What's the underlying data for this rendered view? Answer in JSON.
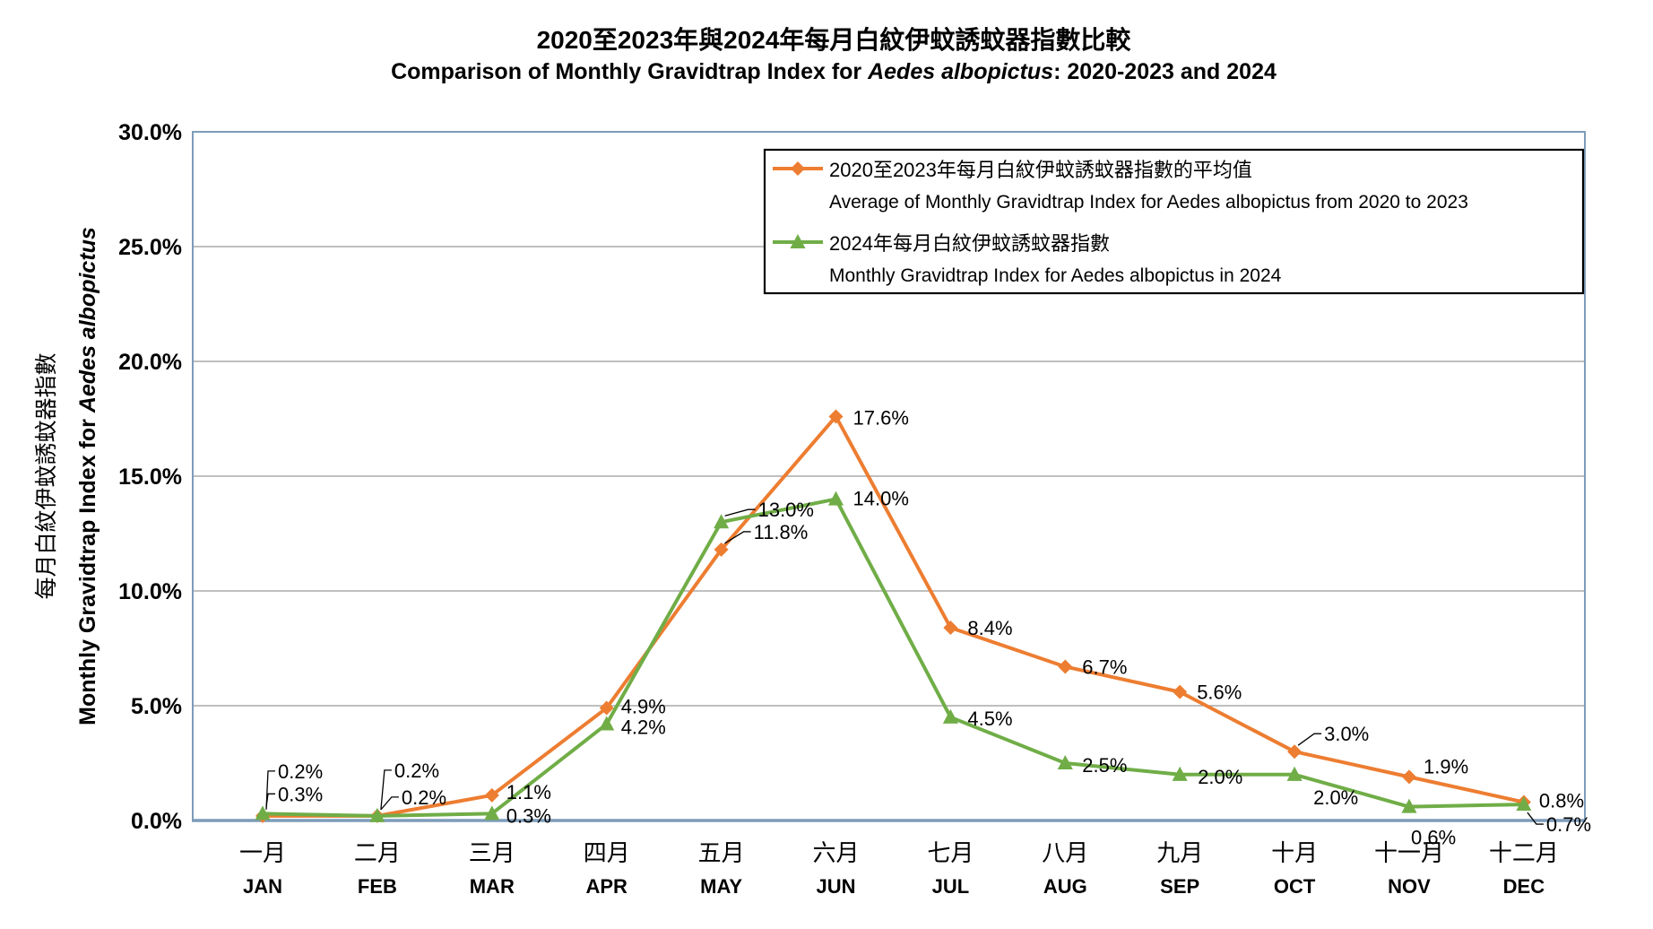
{
  "title": {
    "zh": "2020至2023年與2024年每月白紋伊蚊誘蚊器指數比較",
    "en_prefix": "Comparison of Monthly Gravidtrap Index for ",
    "en_italic": "Aedes albopictus",
    "en_suffix": ":  2020-2023 and 2024"
  },
  "axes": {
    "y_title_zh": "每月白紋伊蚊誘蚊器指數",
    "y_title_en_prefix": "Monthly Gravidtrap Index for ",
    "y_title_en_italic": "Aedes albopictus"
  },
  "chart_data": {
    "type": "line",
    "categories_zh": [
      "一月",
      "二月",
      "三月",
      "四月",
      "五月",
      "六月",
      "七月",
      "八月",
      "九月",
      "十月",
      "十一月",
      "十二月"
    ],
    "categories_en": [
      "JAN",
      "FEB",
      "MAR",
      "APR",
      "MAY",
      "JUN",
      "JUL",
      "AUG",
      "SEP",
      "OCT",
      "NOV",
      "DEC"
    ],
    "ylim": [
      0,
      30
    ],
    "y_tick_step": 5,
    "y_tick_labels": [
      "0.0%",
      "5.0%",
      "10.0%",
      "15.0%",
      "20.0%",
      "25.0%",
      "30.0%"
    ],
    "grid": true,
    "legend_position": "top-right",
    "colors": {
      "grid": "#999999",
      "plot_border": "#7D9CBA",
      "leader": "#000000",
      "legend_border": "#000000"
    },
    "series": [
      {
        "id": "avg-2020-2023",
        "name_zh": "2020至2023年每月白紋伊蚊誘蚊器指數的平均值",
        "name_en": "Average of Monthly Gravidtrap Index  for Aedes albopictus from 2020 to 2023",
        "color": "#ED7D31",
        "label_color": "#C05B2A",
        "marker": "diamond",
        "values": [
          0.2,
          0.2,
          1.1,
          4.9,
          11.8,
          17.6,
          8.4,
          6.7,
          5.6,
          3.0,
          1.9,
          0.8
        ],
        "labels": [
          "0.2%",
          "0.2%",
          "1.1%",
          "4.9%",
          "11.8%",
          "17.6%",
          "8.4%",
          "6.7%",
          "5.6%",
          "3.0%",
          "1.9%",
          "0.8%"
        ],
        "label_layout": [
          {
            "ox": 17,
            "oy": -50,
            "leader": true
          },
          {
            "ox": 19,
            "oy": -51,
            "leader": true
          },
          {
            "ox": 16,
            "oy": -4
          },
          {
            "ox": 16,
            "oy": -2
          },
          {
            "ox": 36,
            "oy": -20,
            "leader": true
          },
          {
            "ox": 19,
            "oy": 1
          },
          {
            "ox": 19,
            "oy": 0
          },
          {
            "ox": 19,
            "oy": 0
          },
          {
            "ox": 19,
            "oy": 0
          },
          {
            "ox": 33,
            "oy": -20,
            "leader": true
          },
          {
            "ox": 16,
            "oy": -12
          },
          {
            "ox": 17,
            "oy": -2
          }
        ]
      },
      {
        "id": "y2024",
        "name_zh": "2024年每月白紋伊蚊誘蚊器指數",
        "name_en": "Monthly Gravidtrap Index for Aedes albopictus in 2024",
        "color": "#70AD47",
        "label_color": "#2E9668",
        "marker": "triangle",
        "values": [
          0.3,
          0.2,
          0.3,
          4.2,
          13.0,
          14.0,
          4.5,
          2.5,
          2.0,
          2.0,
          0.6,
          0.7
        ],
        "labels": [
          "0.3%",
          "0.2%",
          "0.3%",
          "4.2%",
          "13.0%",
          "14.0%",
          "4.5%",
          "2.5%",
          "2.0%",
          "2.0%",
          "0.6%",
          "0.7%"
        ],
        "label_layout": [
          {
            "ox": 17,
            "oy": -22,
            "leader": true
          },
          {
            "ox": 27,
            "oy": -21,
            "leader": true
          },
          {
            "ox": 16,
            "oy": 2
          },
          {
            "ox": 16,
            "oy": 3
          },
          {
            "ox": 41,
            "oy": -14,
            "leader": true
          },
          {
            "ox": 19,
            "oy": -1
          },
          {
            "ox": 19,
            "oy": 1
          },
          {
            "ox": 19,
            "oy": 2
          },
          {
            "ox": 20,
            "oy": 2
          },
          {
            "ox": 21,
            "oy": 25
          },
          {
            "ox": 2,
            "oy": 34
          },
          {
            "ox": 25,
            "oy": 22,
            "leader": true
          }
        ]
      }
    ]
  }
}
